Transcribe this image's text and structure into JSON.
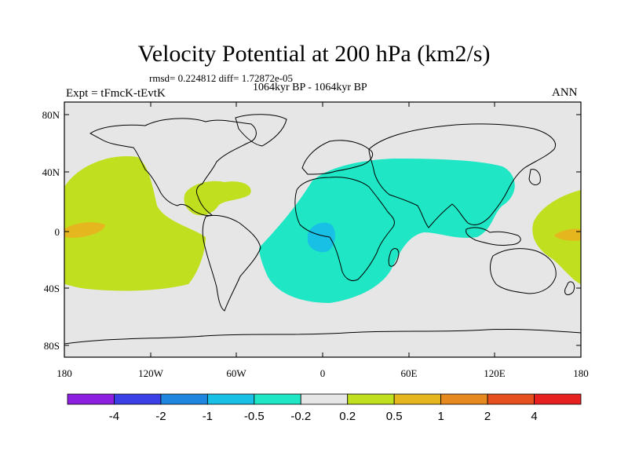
{
  "header": {
    "title": "Velocity Potential at 200 hPa (km2/s)",
    "rmsd_text": "rmsd= 0.224812 diff= 1.72872e-05",
    "expt": "Expt = tFmcK-tEvtK",
    "period": "1064kyr BP - 1064kyr BP",
    "season": "ANN"
  },
  "map": {
    "lat_ticks": [
      "80N",
      "40N",
      "0",
      "40S",
      "80S"
    ],
    "lon_ticks": [
      "180",
      "120W",
      "60W",
      "0",
      "60E",
      "120E",
      "180"
    ],
    "background_color": "#e6e6e6"
  },
  "colorbar": {
    "colors": [
      "#8c1fe0",
      "#3b3fe6",
      "#1f86e0",
      "#19c0e6",
      "#1fe6c4",
      "#e6e6e6",
      "#c0e01f",
      "#e6b61f",
      "#e68a1f",
      "#e6501f",
      "#e61f1f"
    ],
    "labels": [
      "-4",
      "-2",
      "-1",
      "-0.5",
      "-0.2",
      "0.2",
      "0.5",
      "1",
      "2",
      "4"
    ]
  }
}
